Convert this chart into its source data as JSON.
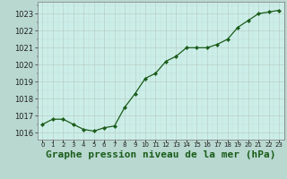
{
  "hours": [
    0,
    1,
    2,
    3,
    4,
    5,
    6,
    7,
    8,
    9,
    10,
    11,
    12,
    13,
    14,
    15,
    16,
    17,
    18,
    19,
    20,
    21,
    22,
    23
  ],
  "pressure": [
    1016.5,
    1016.8,
    1016.8,
    1016.5,
    1016.2,
    1016.1,
    1016.3,
    1016.4,
    1017.5,
    1018.3,
    1019.2,
    1019.5,
    1020.2,
    1020.5,
    1021.0,
    1021.0,
    1021.0,
    1021.2,
    1021.5,
    1022.2,
    1022.6,
    1023.0,
    1023.1,
    1023.2
  ],
  "line_color": "#1a5c1a",
  "marker": "D",
  "marker_size": 2.2,
  "bg_color": "#cceee8",
  "grid_color_minor": "#c0ddd8",
  "grid_color_major": "#b8cfc8",
  "title": "Graphe pression niveau de la mer (hPa)",
  "title_fontsize": 8,
  "xlabel_ticks": [
    "0",
    "1",
    "2",
    "3",
    "4",
    "5",
    "6",
    "7",
    "8",
    "9",
    "10",
    "11",
    "12",
    "13",
    "14",
    "15",
    "16",
    "17",
    "18",
    "19",
    "20",
    "21",
    "22",
    "23"
  ],
  "ylim": [
    1015.6,
    1023.7
  ],
  "yticks": [
    1016,
    1017,
    1018,
    1019,
    1020,
    1021,
    1022,
    1023
  ],
  "outer_bg": "#b8d8d0",
  "title_color": "#1a5c1a",
  "spine_color": "#888888",
  "tick_color": "#222222",
  "ytick_fontsize": 6,
  "xtick_fontsize": 5
}
